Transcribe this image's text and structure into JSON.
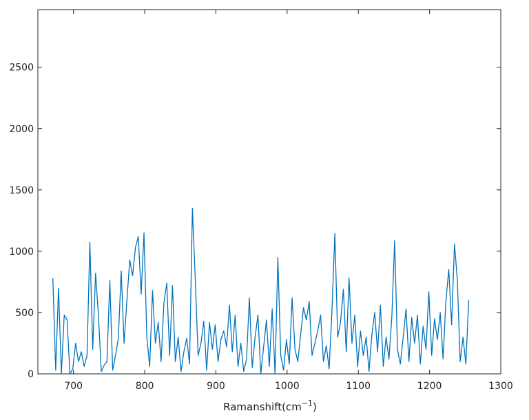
{
  "chart_data": {
    "type": "line",
    "xlabel": {
      "text": "Ramanshift(cm",
      "sup": "−1",
      "suffix": ")"
    },
    "x": [
      671,
      675,
      679,
      683,
      687,
      691,
      695,
      699,
      703,
      707,
      711,
      715,
      719,
      723,
      727,
      731,
      735,
      739,
      743,
      747,
      751,
      755,
      759,
      763,
      767,
      771,
      775,
      779,
      783,
      787,
      791,
      795,
      799,
      803,
      807,
      811,
      815,
      819,
      823,
      827,
      831,
      835,
      839,
      843,
      847,
      851,
      855,
      859,
      863,
      867,
      871,
      875,
      879,
      883,
      887,
      891,
      895,
      899,
      903,
      907,
      911,
      915,
      919,
      923,
      927,
      931,
      935,
      939,
      943,
      947,
      951,
      955,
      959,
      963,
      967,
      971,
      975,
      979,
      983,
      987,
      991,
      995,
      999,
      1003,
      1007,
      1011,
      1015,
      1019,
      1023,
      1027,
      1031,
      1035,
      1039,
      1043,
      1047,
      1051,
      1055,
      1059,
      1063,
      1067,
      1071,
      1075,
      1079,
      1083,
      1087,
      1091,
      1095,
      1099,
      1103,
      1107,
      1111,
      1115,
      1119,
      1123,
      1127,
      1131,
      1135,
      1139,
      1143,
      1147,
      1151,
      1155,
      1159,
      1163,
      1167,
      1171,
      1175,
      1179,
      1183,
      1187,
      1191,
      1195,
      1199,
      1203,
      1207,
      1211,
      1215,
      1219,
      1223,
      1227,
      1231,
      1235,
      1239,
      1243,
      1247,
      1251,
      1255
    ],
    "series": [
      {
        "color": "#0072bd",
        "values": [
          780,
          30,
          700,
          0,
          480,
          440,
          0,
          40,
          250,
          100,
          180,
          60,
          150,
          1075,
          200,
          820,
          480,
          20,
          70,
          100,
          760,
          30,
          150,
          290,
          840,
          250,
          600,
          930,
          800,
          1030,
          1120,
          650,
          1150,
          300,
          60,
          680,
          250,
          420,
          100,
          580,
          740,
          150,
          720,
          100,
          300,
          20,
          180,
          290,
          80,
          1350,
          780,
          150,
          250,
          430,
          30,
          420,
          200,
          400,
          100,
          280,
          350,
          220,
          560,
          180,
          480,
          60,
          250,
          20,
          120,
          620,
          50,
          300,
          480,
          0,
          220,
          440,
          60,
          530,
          0,
          950,
          150,
          30,
          280,
          80,
          620,
          200,
          100,
          320,
          540,
          440,
          590,
          150,
          250,
          350,
          480,
          100,
          230,
          40,
          520,
          1145,
          300,
          420,
          690,
          180,
          780,
          250,
          480,
          60,
          350,
          150,
          300,
          20,
          320,
          500,
          180,
          560,
          60,
          300,
          120,
          460,
          1085,
          200,
          80,
          300,
          530,
          100,
          460,
          250,
          480,
          80,
          390,
          200,
          670,
          150,
          450,
          280,
          500,
          120,
          600,
          850,
          400,
          1060,
          770,
          100,
          300,
          80,
          600
        ]
      }
    ],
    "xlim": [
      650,
      1300
    ],
    "ylim": [
      0,
      2970
    ],
    "xticks": [
      700,
      800,
      900,
      1000,
      1100,
      1200,
      1300
    ],
    "yticks": [
      0,
      500,
      1000,
      1500,
      2000,
      2500
    ]
  }
}
